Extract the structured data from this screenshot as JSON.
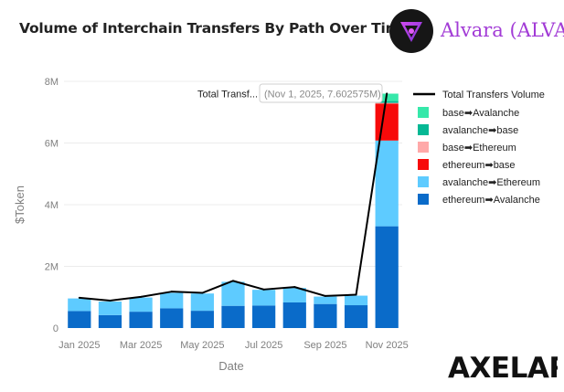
{
  "header": {
    "title": "Volume of Interchain Transfers By Path Over Time"
  },
  "brand": {
    "name": "Alvara (ALVA)",
    "logo_icon": "alvara-logo-icon"
  },
  "footer": {
    "brand": "AXELAR"
  },
  "tooltip": {
    "label": "Total Transf...",
    "value": "(Nov 1, 2025, 7.602575M)"
  },
  "chart_data": {
    "type": "bar",
    "stacked": true,
    "title": "Volume of Interchain Transfers By Path Over Time",
    "xlabel": "Date",
    "ylabel": "$Token",
    "ylim": [
      0,
      8000000
    ],
    "yticks": [
      0,
      2000000,
      4000000,
      6000000,
      8000000
    ],
    "ytick_labels": [
      "0",
      "2M",
      "4M",
      "6M",
      "8M"
    ],
    "categories": [
      "Jan 2025",
      "Feb 2025",
      "Mar 2025",
      "Apr 2025",
      "May 2025",
      "Jun 2025",
      "Jul 2025",
      "Aug 2025",
      "Sep 2025",
      "Oct 2025",
      "Nov 2025"
    ],
    "xtick_labels": [
      "Jan 2025",
      "Mar 2025",
      "May 2025",
      "Jul 2025",
      "Sep 2025",
      "Nov 2025"
    ],
    "series": [
      {
        "name": "ethereum➡Avalanche",
        "color": "#0a6bc9",
        "values": [
          550000,
          420000,
          530000,
          640000,
          560000,
          720000,
          730000,
          830000,
          780000,
          740000,
          3300000
        ]
      },
      {
        "name": "avalanche➡Ethereum",
        "color": "#5ecbff",
        "values": [
          410000,
          440000,
          460000,
          500000,
          560000,
          780000,
          510000,
          470000,
          240000,
          310000,
          2780000
        ]
      },
      {
        "name": "ethereum➡base",
        "color": "#f70a0a",
        "values": [
          0,
          0,
          0,
          0,
          0,
          0,
          0,
          0,
          0,
          0,
          1200000
        ]
      },
      {
        "name": "base➡Ethereum",
        "color": "#ffa9a9",
        "values": [
          0,
          0,
          0,
          0,
          0,
          0,
          0,
          0,
          0,
          0,
          20000
        ]
      },
      {
        "name": "avalanche➡base",
        "color": "#05b894",
        "values": [
          0,
          0,
          0,
          0,
          0,
          0,
          0,
          0,
          0,
          0,
          60000
        ]
      },
      {
        "name": "base➡Avalanche",
        "color": "#36e8aa",
        "values": [
          0,
          0,
          0,
          0,
          0,
          0,
          0,
          0,
          0,
          0,
          240000
        ]
      }
    ],
    "line": {
      "name": "Total Transfers Volume",
      "color": "#000000",
      "values": [
        980000,
        890000,
        1010000,
        1180000,
        1140000,
        1530000,
        1250000,
        1330000,
        1040000,
        1080000,
        7602575
      ]
    },
    "legend_position": "right"
  }
}
